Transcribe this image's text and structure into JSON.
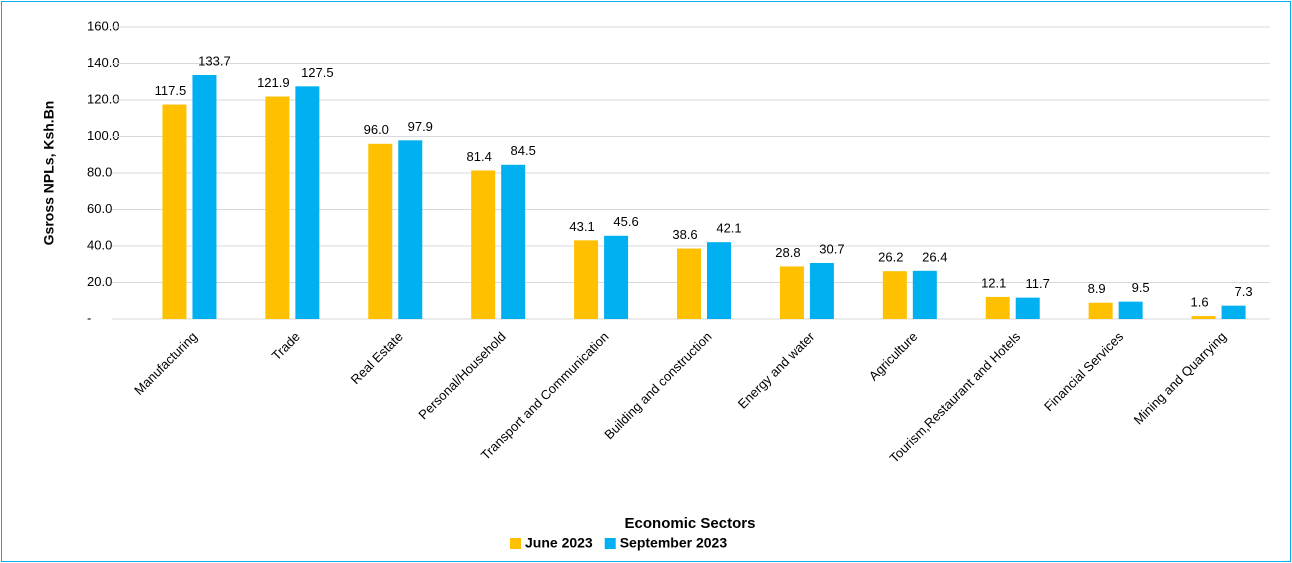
{
  "chart_data": {
    "type": "bar",
    "y_label": "Gsross NPLs, Ksh.Bn",
    "x_label": "Economic Sectors",
    "categories": [
      "Manufacturing",
      "Trade",
      "Real Estate",
      "Personal/Household",
      "Transport and Communication",
      "Building and construction",
      "Energy and water",
      "Agriculture",
      "Tourism,Restaurant and Hotels",
      "Financial Services",
      "Mining and Quarrying"
    ],
    "series": [
      {
        "name": "June 2023",
        "color": "#FFC000",
        "values": [
          117.5,
          121.9,
          96.0,
          81.4,
          43.1,
          38.6,
          28.8,
          26.2,
          12.1,
          8.9,
          1.6
        ],
        "value_labels": [
          "117.5",
          "121.9",
          "96.0",
          "81.4",
          "43.1",
          "38.6",
          "28.8",
          "26.2",
          "12.1",
          "8.9",
          "1.6"
        ]
      },
      {
        "name": "September 2023",
        "color": "#00B0F0",
        "values": [
          133.7,
          127.5,
          97.9,
          84.5,
          45.6,
          42.1,
          30.7,
          26.4,
          11.7,
          9.5,
          7.3
        ],
        "value_labels": [
          "133.7",
          "127.5",
          "97.9",
          "84.5",
          "45.6",
          "42.1",
          "30.7",
          "26.4",
          "11.7",
          "9.5",
          "7.3"
        ]
      }
    ],
    "ylim": [
      0,
      160
    ],
    "yticks": [
      {
        "value": 0,
        "label": "-"
      },
      {
        "value": 20,
        "label": "20.0"
      },
      {
        "value": 40,
        "label": "40.0"
      },
      {
        "value": 60,
        "label": "60.0"
      },
      {
        "value": 80,
        "label": "80.0"
      },
      {
        "value": 100,
        "label": "100.0"
      },
      {
        "value": 120,
        "label": "120.0"
      },
      {
        "value": 140,
        "label": "140.0"
      },
      {
        "value": 160,
        "label": "160.0"
      }
    ],
    "grid": true,
    "legend": "bottom"
  }
}
